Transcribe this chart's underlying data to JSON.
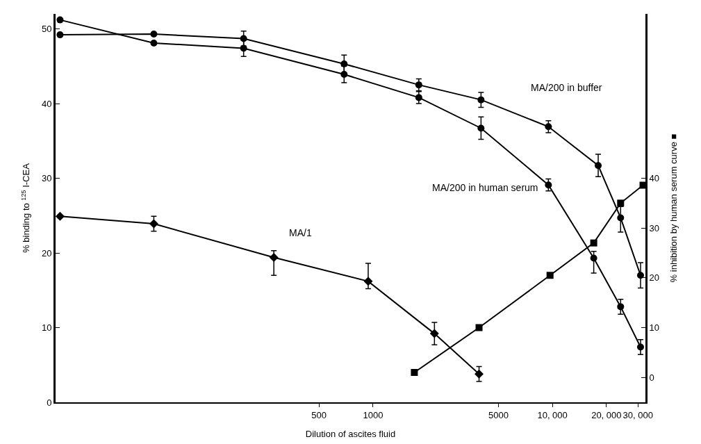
{
  "chart_data": {
    "type": "line",
    "xlabel": "Dilution of ascites fluid",
    "ylabel": "% binding to $^{125}$ I-CEA",
    "y2label": "% inhibition by human serum curve ■",
    "log": "x",
    "grid": false,
    "legend": false,
    "line_style": "solid",
    "xlim": [
      17,
      33000
    ],
    "xticks": [
      500,
      1000,
      5000,
      {
        "value": 10000,
        "label": "10, 000"
      },
      {
        "value": 20000,
        "label": "20, 000"
      },
      {
        "value": 30000,
        "label": "30, 000"
      }
    ],
    "ylim": [
      0,
      52
    ],
    "yticks": [
      0,
      10,
      20,
      30,
      40,
      50
    ],
    "y2lim": [
      -5,
      73
    ],
    "y2ticks": [
      0,
      10,
      20,
      30,
      40
    ],
    "series": [
      {
        "name": "MA/200 in buffer",
        "color": "#000000",
        "marker": "circle",
        "x": [
          18,
          60,
          190,
          690,
          1800,
          4000,
          9500,
          18000,
          24000,
          31000
        ],
        "values": [
          49.2,
          49.3,
          48.7,
          45.3,
          42.5,
          40.5,
          36.9,
          31.7,
          24.7,
          17.0
        ],
        "errors": [
          null,
          null,
          1,
          1.2,
          0.8,
          1,
          0.8,
          1.5,
          [
            22.8,
            26.2
          ],
          1.7
        ]
      },
      {
        "name": "MA/200 in human serum",
        "color": "#000000",
        "marker": "circle",
        "x": [
          18,
          60,
          190,
          690,
          1800,
          4000,
          9500,
          17000,
          24000,
          31000
        ],
        "values": [
          51.2,
          48.1,
          47.4,
          43.9,
          40.8,
          36.7,
          29.1,
          19.3,
          12.8,
          7.4
        ],
        "errors": [
          null,
          null,
          1.1,
          1.1,
          0.8,
          1.5,
          0.8,
          [
            17.3,
            20.2
          ],
          1,
          1
        ]
      },
      {
        "name": "MA/1",
        "color": "#000000",
        "marker": "diamond",
        "x": [
          18,
          60,
          280,
          940,
          2200,
          3900
        ],
        "values": [
          24.9,
          23.9,
          19.4,
          16.2,
          9.2,
          3.8
        ],
        "errors": [
          null,
          1,
          [
            17,
            20.3
          ],
          [
            15.2,
            18.6
          ],
          1.5,
          1
        ]
      },
      {
        "color": "#000000",
        "marker": "square",
        "axis": "y2",
        "x": [
          1700,
          3900,
          9700,
          17000,
          24000,
          32000
        ],
        "values": [
          1,
          10,
          20.5,
          27,
          35,
          38.6
        ]
      }
    ]
  }
}
